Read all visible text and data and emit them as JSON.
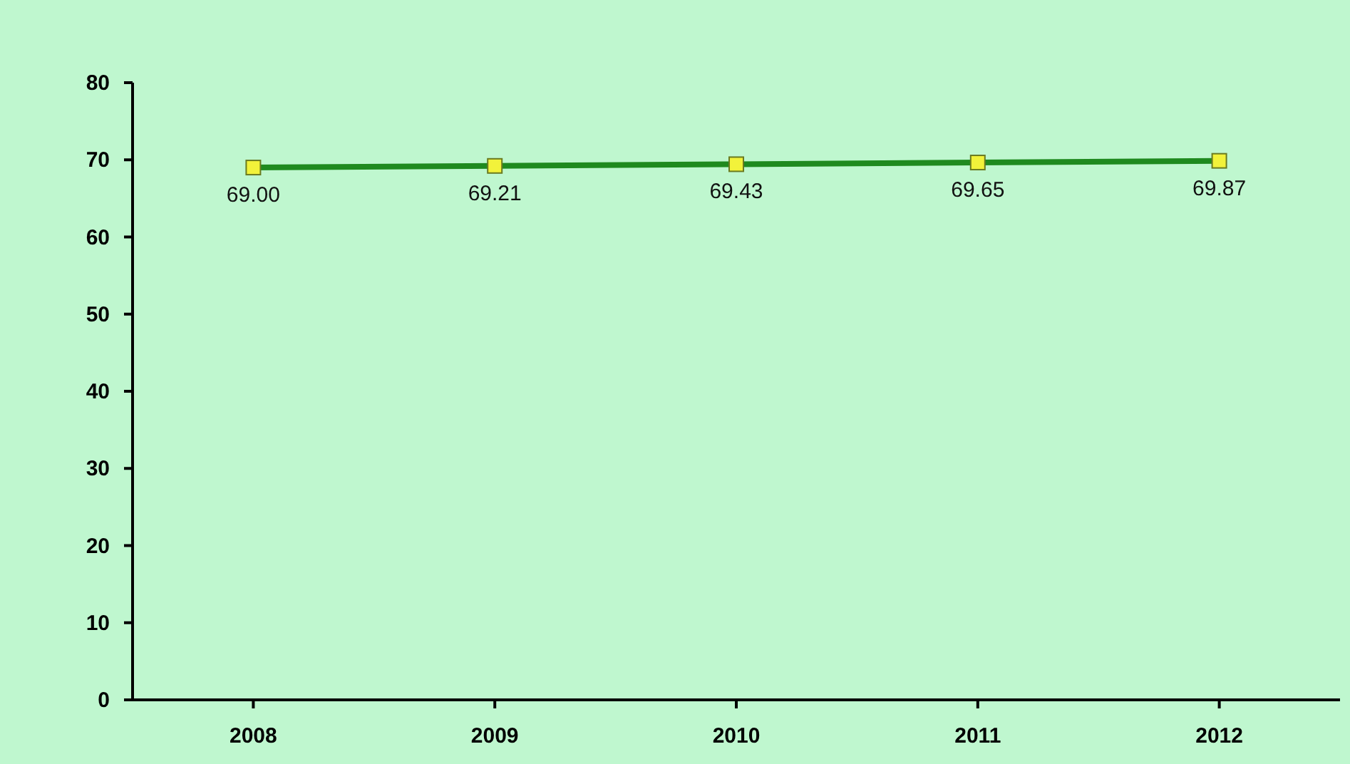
{
  "chart_data": {
    "type": "line",
    "categories": [
      "2008",
      "2009",
      "2010",
      "2011",
      "2012"
    ],
    "series": [
      {
        "color": "#1f8a1f",
        "values": [
          69.0,
          69.21,
          69.43,
          69.65,
          69.87
        ],
        "value_labels": [
          "69.00",
          "69.21",
          "69.43",
          "69.65",
          "69.87"
        ]
      }
    ],
    "ylim": [
      0,
      80
    ],
    "yticks": [
      0,
      10,
      20,
      30,
      40,
      50,
      60,
      70,
      80
    ],
    "grid": false,
    "marker": "square",
    "line_style": "solid"
  }
}
